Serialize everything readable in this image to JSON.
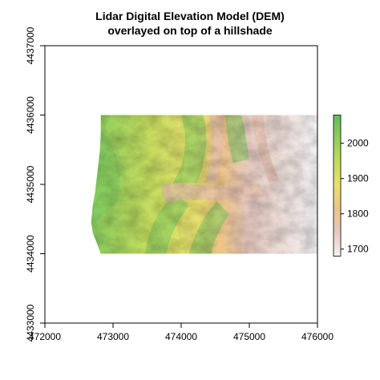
{
  "title_line1": "Lidar Digital Elevation Model (DEM)",
  "title_line2": "overlayed on top of a hillshade",
  "chart_data": {
    "type": "heatmap",
    "title": "Lidar Digital Elevation Model (DEM)\noverlayed on top of a hillshade",
    "xlabel": "",
    "ylabel": "",
    "xlim": [
      472000,
      476000
    ],
    "ylim": [
      4433000,
      4437000
    ],
    "x_ticks": [
      "472000",
      "473000",
      "474000",
      "475000",
      "476000"
    ],
    "y_ticks": [
      "4433000",
      "4434000",
      "4435000",
      "4436000",
      "4437000"
    ],
    "raster_extent": {
      "xmin": 472350,
      "xmax": 476000,
      "ymin": 4434000,
      "ymax": 4436000
    },
    "legend": {
      "position": "right",
      "min": 1680,
      "max": 2080,
      "ticks": [
        "1700",
        "1800",
        "1900",
        "2000"
      ],
      "tick_values": [
        1700,
        1800,
        1900,
        2000
      ],
      "colors": [
        "#f2f2f2",
        "#e6c9bf",
        "#eec38a",
        "#eadf6e",
        "#c3dc5e",
        "#8fce5d",
        "#5fbe5a"
      ]
    }
  }
}
